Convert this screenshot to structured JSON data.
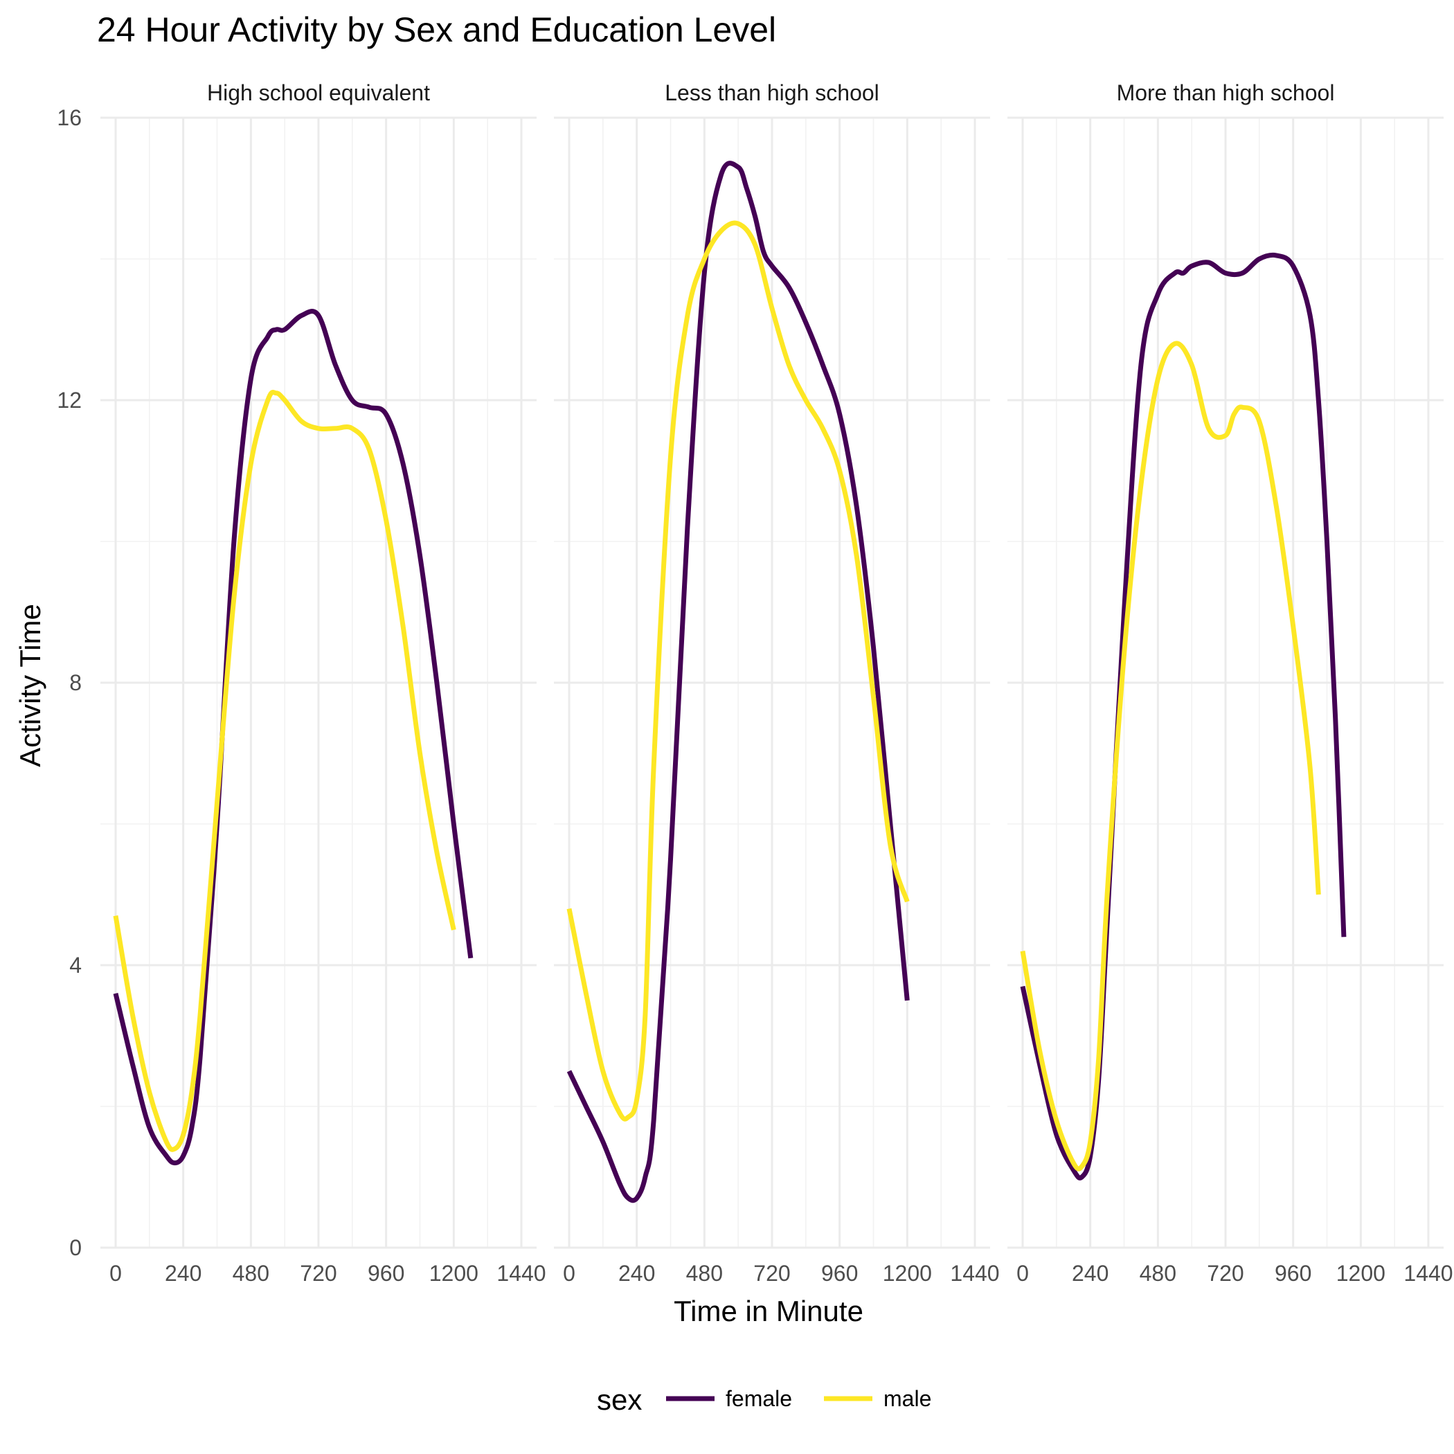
{
  "chart_data": {
    "type": "line",
    "title": "24 Hour Activity by Sex and Education Level",
    "xlabel": "Time in Minute",
    "ylabel": "Activity Time",
    "xlim": [
      0,
      1440
    ],
    "ylim": [
      0,
      16
    ],
    "x_ticks": [
      "0",
      "240",
      "480",
      "720",
      "960",
      "1200",
      "1440"
    ],
    "y_ticks": [
      "0",
      "4",
      "8",
      "12",
      "16"
    ],
    "grid": true,
    "legend": {
      "title": "sex",
      "position": "bottom",
      "items": [
        {
          "label": "female",
          "color": "#440154"
        },
        {
          "label": "male",
          "color": "#FDE725"
        }
      ]
    },
    "panels": [
      {
        "label": "High school equivalent",
        "series": [
          {
            "name": "female",
            "x": [
              0,
              60,
              120,
              180,
              210,
              240,
              270,
              300,
              360,
              420,
              480,
              540,
              570,
              600,
              660,
              720,
              780,
              840,
              900,
              960,
              1020,
              1080,
              1140,
              1200,
              1260,
              1320,
              1380,
              1440
            ],
            "y": [
              3.6,
              2.6,
              1.7,
              1.3,
              1.2,
              1.3,
              1.7,
              2.7,
              6.0,
              10.0,
              12.3,
              12.9,
              13.0,
              13.0,
              13.2,
              13.2,
              12.5,
              12.0,
              11.9,
              11.8,
              11.1,
              9.8,
              8.0,
              6.0,
              4.1,
              null,
              null,
              null
            ]
          },
          {
            "name": "male",
            "x": [
              0,
              60,
              120,
              180,
              210,
              240,
              270,
              300,
              360,
              420,
              480,
              540,
              570,
              600,
              660,
              720,
              780,
              840,
              900,
              960,
              1020,
              1080,
              1140,
              1200,
              1260,
              1320,
              1380,
              1440
            ],
            "y": [
              4.7,
              3.3,
              2.2,
              1.5,
              1.4,
              1.6,
              2.2,
              3.3,
              6.3,
              9.2,
              11.1,
              12.0,
              12.1,
              12.0,
              11.7,
              11.6,
              11.6,
              11.6,
              11.3,
              10.3,
              8.8,
              7.0,
              5.6,
              4.5,
              null,
              null,
              null,
              null
            ]
          }
        ]
      },
      {
        "label": "Less than high school",
        "series": [
          {
            "name": "female",
            "x": [
              0,
              60,
              120,
              180,
              210,
              240,
              270,
              300,
              360,
              420,
              480,
              540,
              600,
              630,
              660,
              690,
              720,
              780,
              840,
              900,
              960,
              1020,
              1080,
              1140,
              1200,
              1260,
              1320,
              1380,
              1440
            ],
            "y": [
              2.5,
              2.0,
              1.5,
              0.9,
              0.7,
              0.7,
              1.0,
              1.8,
              5.5,
              10.2,
              13.8,
              15.2,
              15.3,
              15.0,
              14.6,
              14.1,
              13.9,
              13.6,
              13.1,
              12.5,
              11.8,
              10.5,
              8.5,
              6.0,
              3.5,
              null,
              null,
              null,
              null
            ]
          },
          {
            "name": "male",
            "x": [
              0,
              60,
              120,
              180,
              210,
              240,
              270,
              300,
              360,
              420,
              480,
              540,
              600,
              660,
              720,
              780,
              840,
              900,
              960,
              1020,
              1080,
              1140,
              1200,
              1260,
              1320,
              1380,
              1440
            ],
            "y": [
              4.8,
              3.6,
              2.5,
              1.9,
              1.85,
              2.1,
              3.3,
              6.8,
              11.2,
              13.2,
              14.0,
              14.4,
              14.5,
              14.2,
              13.3,
              12.5,
              12.0,
              11.6,
              11.0,
              9.8,
              7.8,
              5.7,
              4.9,
              null,
              null,
              null,
              null
            ]
          }
        ]
      },
      {
        "label": "More than high school",
        "series": [
          {
            "name": "female",
            "x": [
              0,
              60,
              120,
              180,
              210,
              240,
              270,
              300,
              360,
              420,
              480,
              540,
              570,
              600,
              660,
              720,
              780,
              840,
              900,
              960,
              1020,
              1050,
              1080,
              1110,
              1140,
              1200,
              1260,
              1320,
              1380,
              1440
            ],
            "y": [
              3.7,
              2.6,
              1.6,
              1.1,
              1.0,
              1.3,
              2.4,
              4.6,
              9.0,
              12.5,
              13.5,
              13.8,
              13.8,
              13.9,
              13.95,
              13.8,
              13.8,
              14.0,
              14.05,
              13.9,
              13.2,
              12.0,
              10.0,
              7.5,
              4.4,
              null,
              null,
              null,
              null,
              null
            ]
          },
          {
            "name": "male",
            "x": [
              0,
              60,
              120,
              180,
              210,
              240,
              270,
              300,
              360,
              420,
              480,
              540,
              600,
              660,
              720,
              750,
              780,
              840,
              900,
              960,
              1020,
              1050,
              1080,
              1110,
              1140,
              1200,
              1260,
              1320,
              1380,
              1440
            ],
            "y": [
              4.2,
              2.8,
              1.8,
              1.2,
              1.15,
              1.5,
              2.7,
              5.0,
              8.4,
              10.8,
              12.3,
              12.8,
              12.5,
              11.6,
              11.5,
              11.8,
              11.9,
              11.7,
              10.5,
              8.8,
              6.8,
              5.0,
              null,
              null,
              null,
              null,
              null,
              null,
              null,
              null
            ]
          }
        ]
      }
    ]
  }
}
